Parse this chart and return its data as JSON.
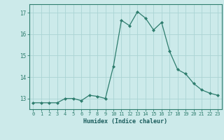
{
  "x": [
    0,
    1,
    2,
    3,
    4,
    5,
    6,
    7,
    8,
    9,
    10,
    11,
    12,
    13,
    14,
    15,
    16,
    17,
    18,
    19,
    20,
    21,
    22,
    23
  ],
  "y": [
    12.8,
    12.8,
    12.8,
    12.8,
    13.0,
    13.0,
    12.9,
    13.15,
    13.1,
    13.0,
    14.5,
    16.65,
    16.4,
    17.05,
    16.75,
    16.2,
    16.55,
    15.2,
    14.35,
    14.15,
    13.7,
    13.4,
    13.25,
    13.15
  ],
  "line_color": "#2e7d6e",
  "marker_color": "#2e7d6e",
  "bg_color": "#cceaea",
  "grid_color": "#aad4d4",
  "axis_color": "#2e7d6e",
  "tick_label_color": "#1a5c5c",
  "xlabel": "Humidex (Indice chaleur)",
  "ylim": [
    12.5,
    17.4
  ],
  "yticks": [
    13,
    14,
    15,
    16,
    17
  ],
  "xticks": [
    0,
    1,
    2,
    3,
    4,
    5,
    6,
    7,
    8,
    9,
    10,
    11,
    12,
    13,
    14,
    15,
    16,
    17,
    18,
    19,
    20,
    21,
    22,
    23
  ]
}
